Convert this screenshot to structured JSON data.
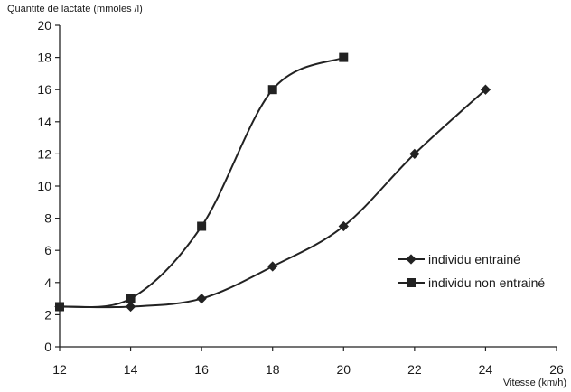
{
  "chart_data": {
    "type": "line",
    "ylabel": "Quantité de lactate (mmoles /l)",
    "xlabel": "Vitesse (km/h)",
    "xlim": [
      12,
      26
    ],
    "ylim": [
      0,
      20
    ],
    "x_ticks": [
      12,
      14,
      16,
      18,
      20,
      22,
      24,
      26
    ],
    "y_ticks": [
      0,
      2,
      4,
      6,
      8,
      10,
      12,
      14,
      16,
      18,
      20
    ],
    "grid": false,
    "legend_position": "right",
    "series": [
      {
        "name": "individu entrainé",
        "marker": "diamond",
        "x": [
          12,
          14,
          16,
          18,
          20,
          22,
          24
        ],
        "y": [
          2.5,
          2.5,
          3,
          5,
          7.5,
          12,
          16
        ]
      },
      {
        "name": "individu non entrainé",
        "marker": "square",
        "x": [
          12,
          14,
          16,
          18,
          20
        ],
        "y": [
          2.5,
          3,
          7.5,
          16,
          18
        ]
      }
    ],
    "colors": {
      "line": "#222222",
      "marker": "#222222"
    }
  }
}
